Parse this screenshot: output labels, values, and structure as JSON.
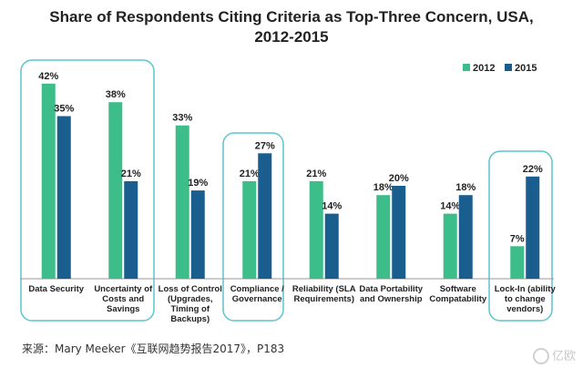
{
  "chart_data": {
    "type": "bar",
    "title_line1": "Share of Respondents Citing Criteria as Top-Three Concern, USA,",
    "title_line2": "2012-2015",
    "categories": [
      [
        "Data Security"
      ],
      [
        "Uncertainty of",
        "Costs and",
        "Savings"
      ],
      [
        "Loss of Control",
        "(Upgrades,",
        "Timing of",
        "Backups)"
      ],
      [
        "Compliance /",
        "Governance"
      ],
      [
        "Reliability (SLA",
        "Requirements)"
      ],
      [
        "Data Portability",
        "and Ownership"
      ],
      [
        "Software",
        "Compatability"
      ],
      [
        "Lock-In (ability",
        "to change",
        "vendors)"
      ]
    ],
    "series": [
      {
        "name": "2012",
        "values": [
          42,
          38,
          33,
          21,
          21,
          18,
          14,
          7
        ],
        "labels": [
          "42%",
          "38%",
          "33%",
          "21%",
          "21%",
          "18%",
          "14%",
          "7%"
        ],
        "color": "#3dbd8a"
      },
      {
        "name": "2015",
        "values": [
          35,
          21,
          19,
          27,
          14,
          20,
          18,
          22
        ],
        "labels": [
          "35%",
          "21%",
          "19%",
          "27%",
          "14%",
          "20%",
          "18%",
          "22%"
        ],
        "color": "#1a5e8f"
      }
    ],
    "highlighted_categories": [
      0,
      1,
      3,
      7
    ],
    "highlight_color": "#5ec4cf",
    "ylim": [
      0,
      45
    ],
    "grid": false,
    "legend_position": "top-right"
  },
  "source_text": "来源：Mary Meeker《互联网趋势报告2017》，P183",
  "watermark_text": "亿欧"
}
